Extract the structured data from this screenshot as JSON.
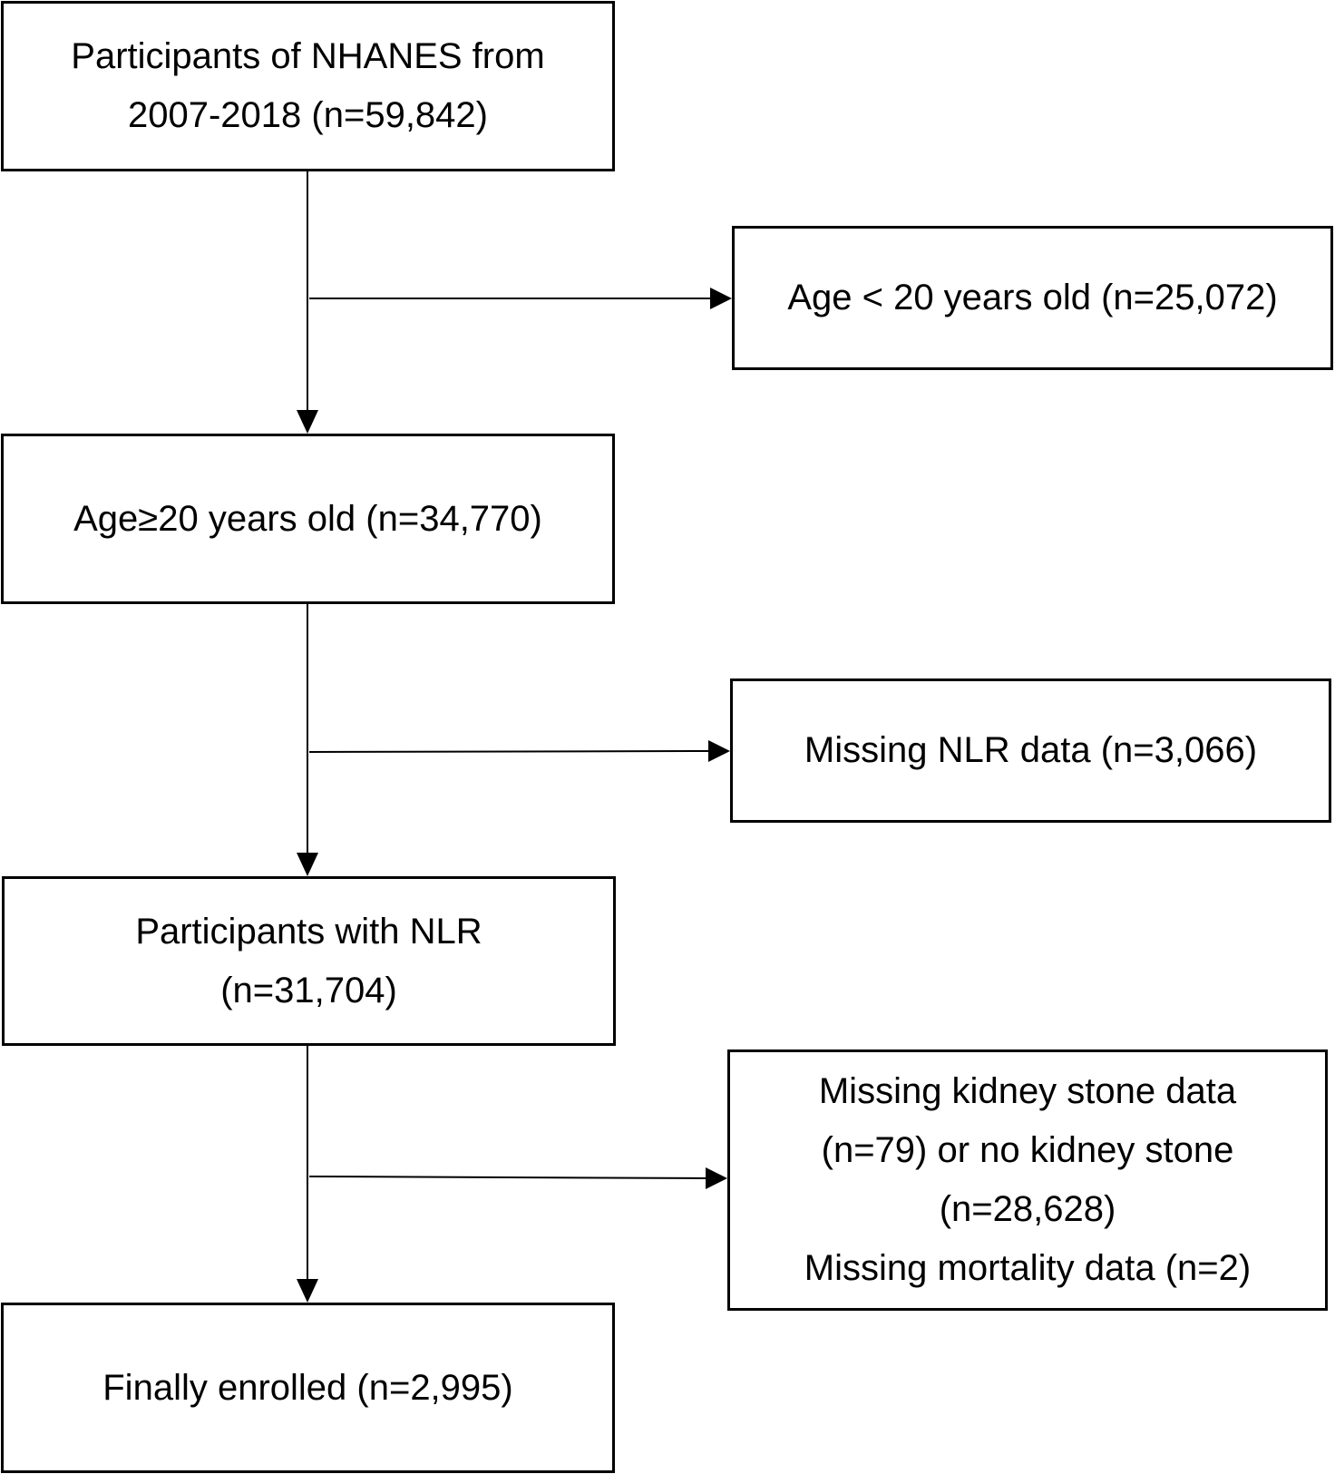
{
  "main_boxes": [
    {
      "lines": [
        "Participants of NHANES from",
        "2007-2018 (n=59,842)"
      ]
    },
    {
      "lines": [
        "Age≥20 years old (n=34,770)"
      ]
    },
    {
      "lines": [
        "Participants with NLR",
        "(n=31,704)"
      ]
    },
    {
      "lines": [
        "Finally enrolled (n=2,995)"
      ]
    }
  ],
  "exclusion_boxes": [
    {
      "lines": [
        "Age < 20 years old (n=25,072)"
      ]
    },
    {
      "lines": [
        "Missing NLR data (n=3,066)"
      ]
    },
    {
      "lines": [
        "Missing kidney stone data",
        "(n=79) or no kidney stone",
        "(n=28,628)",
        "Missing mortality data (n=2)"
      ]
    }
  ]
}
